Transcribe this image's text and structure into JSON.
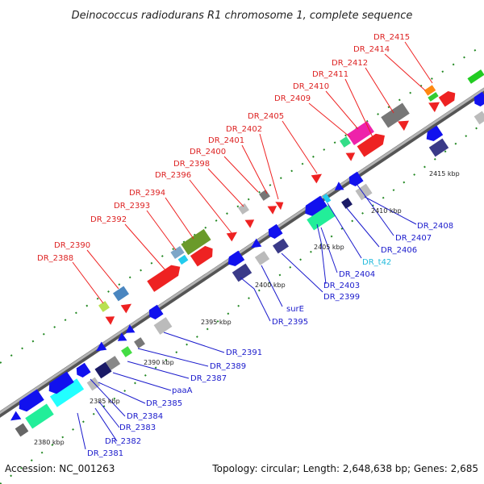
{
  "title": "Deinococcus radiodurans R1 chromosome 1, complete sequence",
  "footer": {
    "accession": "Accession: NC_001263",
    "topology": "Topology: circular; Length: 2,648,638 bp; Genes: 2,685"
  },
  "colors": {
    "top_label": "#dd2222",
    "bottom_label": "#1a1acc",
    "rna_label": "#22bbdd"
  },
  "top_labels": [
    "DR_2388",
    "DR_2390",
    "DR_2392",
    "DR_2393",
    "DR_2394",
    "DR_2396",
    "DR_2398",
    "DR_2400",
    "DR_2401",
    "DR_2402",
    "DR_2405",
    "DR_2409",
    "DR_2410",
    "DR_2411",
    "DR_2412",
    "DR_2414",
    "DR_2415"
  ],
  "bottom_labels": [
    "DR_2381",
    "DR_2382",
    "DR_2383",
    "DR_2384",
    "DR_2385",
    "paaA",
    "DR_2387",
    "DR_2389",
    "DR_2391",
    "DR_2395",
    "surE",
    "DR_2399",
    "DR_2403",
    "DR_2404",
    "DR_t42",
    "DR_2406",
    "DR_2407",
    "DR_2408"
  ],
  "kbp_labels": [
    "2380 kbp",
    "2385 kbp",
    "2390 kbp",
    "2395 kbp",
    "2400 kbp",
    "2405 kbp",
    "2410 kbp",
    "2415 kbp"
  ]
}
